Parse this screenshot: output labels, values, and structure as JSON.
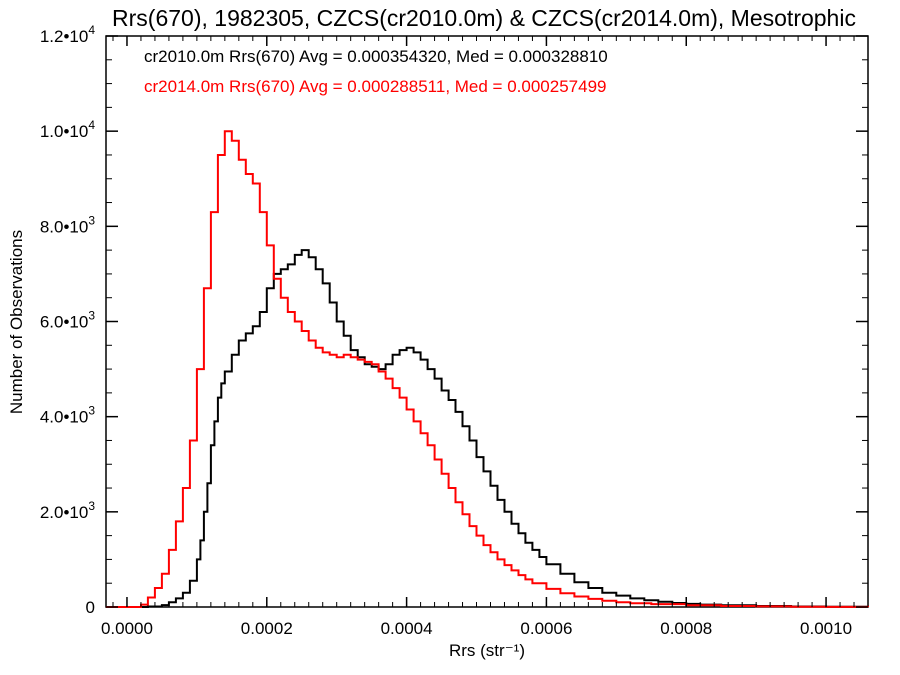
{
  "chart_data": {
    "type": "line",
    "step": true,
    "title": "Rrs(670), 1982305, CZCS(cr2010.0m) & CZCS(cr2014.0m), Mesotrophic",
    "xlabel": "Rrs (str⁻¹)",
    "ylabel": "Number of Observations",
    "xlim": [
      -3e-05,
      0.00106
    ],
    "ylim": [
      0,
      12000
    ],
    "x_ticks": [
      {
        "value": 0.0,
        "label": "0.0000"
      },
      {
        "value": 0.0002,
        "label": "0.0002"
      },
      {
        "value": 0.0004,
        "label": "0.0004"
      },
      {
        "value": 0.0006,
        "label": "0.0006"
      },
      {
        "value": 0.0008,
        "label": "0.0008"
      },
      {
        "value": 0.001,
        "label": "0.0010"
      }
    ],
    "y_ticks": [
      {
        "value": 0,
        "mant": "0",
        "exp": ""
      },
      {
        "value": 2000,
        "mant": "2.0•10",
        "exp": "3"
      },
      {
        "value": 4000,
        "mant": "4.0•10",
        "exp": "3"
      },
      {
        "value": 6000,
        "mant": "6.0•10",
        "exp": "3"
      },
      {
        "value": 8000,
        "mant": "8.0•10",
        "exp": "3"
      },
      {
        "value": 10000,
        "mant": "1.0•10",
        "exp": "4"
      },
      {
        "value": 12000,
        "mant": "1.2•10",
        "exp": "4"
      }
    ],
    "annotations": [
      {
        "text": "cr2010.0m Rrs(670) Avg = 0.000354320, Med = 0.000328810",
        "color": "#000000"
      },
      {
        "text": "cr2014.0m Rrs(670) Avg = 0.000288511, Med = 0.000257499",
        "color": "#ff0000"
      }
    ],
    "series": [
      {
        "color": "#000000",
        "points": [
          [
            -3e-05,
            0
          ],
          [
            0.0,
            0
          ],
          [
            3e-05,
            10
          ],
          [
            5e-05,
            40
          ],
          [
            6e-05,
            100
          ],
          [
            7e-05,
            180
          ],
          [
            8e-05,
            300
          ],
          [
            9e-05,
            550
          ],
          [
            0.0001,
            1000
          ],
          [
            0.000105,
            1400
          ],
          [
            0.00011,
            2000
          ],
          [
            0.000115,
            2600
          ],
          [
            0.00012,
            3400
          ],
          [
            0.000125,
            3900
          ],
          [
            0.00013,
            4400
          ],
          [
            0.000135,
            4700
          ],
          [
            0.00014,
            4950
          ],
          [
            0.00015,
            5300
          ],
          [
            0.00016,
            5600
          ],
          [
            0.00017,
            5750
          ],
          [
            0.00018,
            5900
          ],
          [
            0.00019,
            6200
          ],
          [
            0.0002,
            6700
          ],
          [
            0.00021,
            7000
          ],
          [
            0.00022,
            7100
          ],
          [
            0.00023,
            7200
          ],
          [
            0.00024,
            7400
          ],
          [
            0.00025,
            7500
          ],
          [
            0.00026,
            7350
          ],
          [
            0.00027,
            7100
          ],
          [
            0.00028,
            6800
          ],
          [
            0.00029,
            6400
          ],
          [
            0.0003,
            6000
          ],
          [
            0.00031,
            5700
          ],
          [
            0.00032,
            5400
          ],
          [
            0.00033,
            5250
          ],
          [
            0.00034,
            5100
          ],
          [
            0.00035,
            5050
          ],
          [
            0.00036,
            5000
          ],
          [
            0.00037,
            5100
          ],
          [
            0.00038,
            5300
          ],
          [
            0.00039,
            5400
          ],
          [
            0.0004,
            5450
          ],
          [
            0.00041,
            5350
          ],
          [
            0.00042,
            5200
          ],
          [
            0.00043,
            5000
          ],
          [
            0.00044,
            4800
          ],
          [
            0.00045,
            4550
          ],
          [
            0.00046,
            4350
          ],
          [
            0.00047,
            4100
          ],
          [
            0.00048,
            3800
          ],
          [
            0.00049,
            3500
          ],
          [
            0.0005,
            3150
          ],
          [
            0.00051,
            2850
          ],
          [
            0.00052,
            2550
          ],
          [
            0.00053,
            2250
          ],
          [
            0.00054,
            2000
          ],
          [
            0.00055,
            1750
          ],
          [
            0.00056,
            1550
          ],
          [
            0.00057,
            1350
          ],
          [
            0.00058,
            1200
          ],
          [
            0.00059,
            1050
          ],
          [
            0.0006,
            900
          ],
          [
            0.00062,
            700
          ],
          [
            0.00064,
            520
          ],
          [
            0.00066,
            400
          ],
          [
            0.00068,
            300
          ],
          [
            0.0007,
            240
          ],
          [
            0.00072,
            180
          ],
          [
            0.00074,
            140
          ],
          [
            0.00076,
            110
          ],
          [
            0.00078,
            85
          ],
          [
            0.0008,
            65
          ],
          [
            0.00082,
            50
          ],
          [
            0.00085,
            35
          ],
          [
            0.0009,
            20
          ],
          [
            0.00095,
            10
          ],
          [
            0.001,
            5
          ],
          [
            0.00106,
            0
          ]
        ]
      },
      {
        "color": "#ff0000",
        "points": [
          [
            -3e-05,
            0
          ],
          [
            0.0,
            0
          ],
          [
            2e-05,
            50
          ],
          [
            3e-05,
            200
          ],
          [
            4e-05,
            400
          ],
          [
            5e-05,
            700
          ],
          [
            6e-05,
            1200
          ],
          [
            7e-05,
            1800
          ],
          [
            8e-05,
            2500
          ],
          [
            9e-05,
            3500
          ],
          [
            0.0001,
            5000
          ],
          [
            0.00011,
            6700
          ],
          [
            0.00012,
            8300
          ],
          [
            0.00013,
            9500
          ],
          [
            0.00014,
            10000
          ],
          [
            0.00015,
            9800
          ],
          [
            0.00016,
            9400
          ],
          [
            0.00017,
            9100
          ],
          [
            0.00018,
            8900
          ],
          [
            0.00019,
            8300
          ],
          [
            0.0002,
            7600
          ],
          [
            0.00021,
            6900
          ],
          [
            0.00022,
            6500
          ],
          [
            0.00023,
            6200
          ],
          [
            0.00024,
            6000
          ],
          [
            0.00025,
            5800
          ],
          [
            0.00026,
            5600
          ],
          [
            0.00027,
            5450
          ],
          [
            0.00028,
            5350
          ],
          [
            0.00029,
            5300
          ],
          [
            0.0003,
            5250
          ],
          [
            0.00031,
            5300
          ],
          [
            0.00032,
            5250
          ],
          [
            0.00033,
            5200
          ],
          [
            0.00034,
            5150
          ],
          [
            0.00035,
            5100
          ],
          [
            0.00036,
            4950
          ],
          [
            0.00037,
            4800
          ],
          [
            0.00038,
            4600
          ],
          [
            0.00039,
            4400
          ],
          [
            0.0004,
            4150
          ],
          [
            0.00041,
            3900
          ],
          [
            0.00042,
            3650
          ],
          [
            0.00043,
            3400
          ],
          [
            0.00044,
            3100
          ],
          [
            0.00045,
            2800
          ],
          [
            0.00046,
            2500
          ],
          [
            0.00047,
            2200
          ],
          [
            0.00048,
            1950
          ],
          [
            0.00049,
            1700
          ],
          [
            0.0005,
            1500
          ],
          [
            0.00051,
            1300
          ],
          [
            0.00052,
            1150
          ],
          [
            0.00053,
            1000
          ],
          [
            0.00054,
            880
          ],
          [
            0.00055,
            770
          ],
          [
            0.00056,
            670
          ],
          [
            0.00057,
            580
          ],
          [
            0.00058,
            500
          ],
          [
            0.0006,
            380
          ],
          [
            0.00062,
            290
          ],
          [
            0.00064,
            220
          ],
          [
            0.00066,
            170
          ],
          [
            0.00068,
            130
          ],
          [
            0.0007,
            100
          ],
          [
            0.00072,
            80
          ],
          [
            0.00075,
            60
          ],
          [
            0.0008,
            35
          ],
          [
            0.00085,
            20
          ],
          [
            0.0009,
            12
          ],
          [
            0.00095,
            6
          ],
          [
            0.001,
            3
          ],
          [
            0.00106,
            0
          ]
        ]
      }
    ]
  }
}
